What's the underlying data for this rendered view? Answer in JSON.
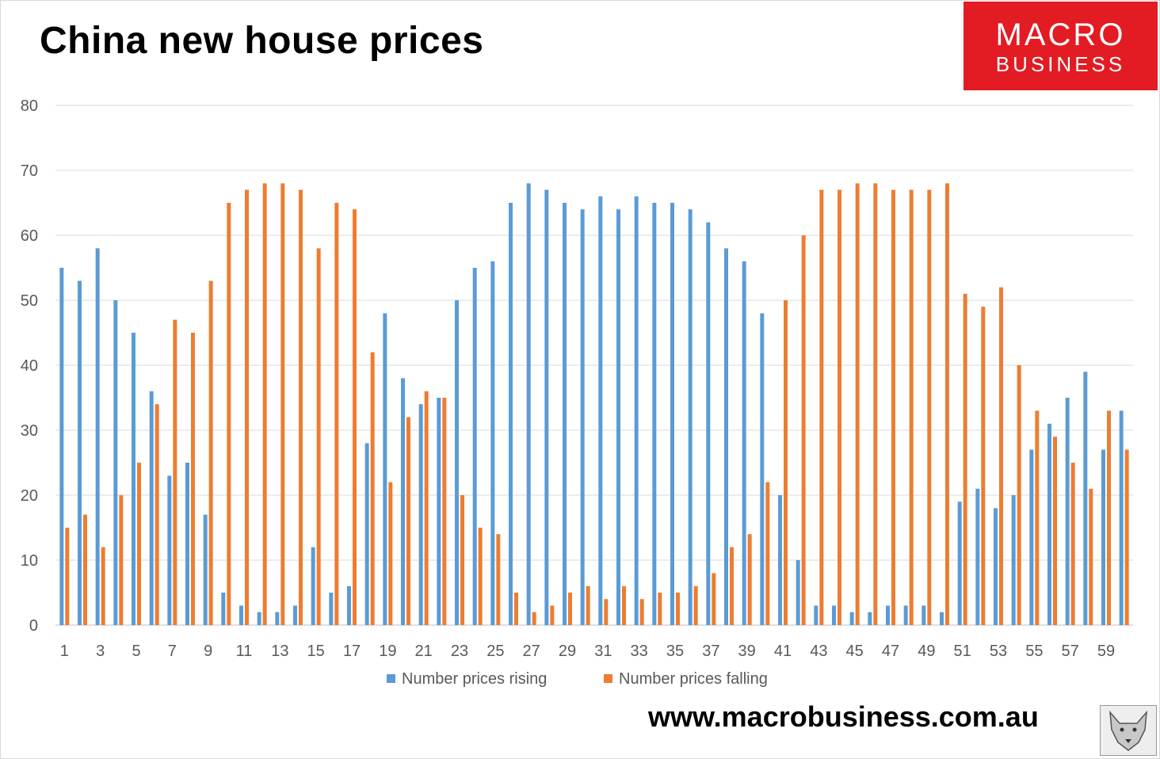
{
  "title": "China new house prices",
  "logo": {
    "line1": "MACRO",
    "line2": "BUSINESS",
    "color": "#e31b23"
  },
  "website": "www.macrobusiness.com.au",
  "chart_data": {
    "type": "bar",
    "title": "China new house prices",
    "xlabel": "",
    "ylabel": "",
    "ylim": [
      0,
      80
    ],
    "yticks": [
      0,
      10,
      20,
      30,
      40,
      50,
      60,
      70,
      80
    ],
    "grid": true,
    "legend": "bottom",
    "x_tick_labels": [
      "1",
      "3",
      "5",
      "7",
      "9",
      "11",
      "13",
      "15",
      "17",
      "19",
      "21",
      "23",
      "25",
      "27",
      "29",
      "31",
      "33",
      "35",
      "37",
      "39",
      "41",
      "43",
      "45",
      "47",
      "49",
      "51",
      "53",
      "55",
      "57",
      "59"
    ],
    "categories": [
      1,
      2,
      3,
      4,
      5,
      6,
      7,
      8,
      9,
      10,
      11,
      12,
      13,
      14,
      15,
      16,
      17,
      18,
      19,
      20,
      21,
      22,
      23,
      24,
      25,
      26,
      27,
      28,
      29,
      30,
      31,
      32,
      33,
      34,
      35,
      36,
      37,
      38,
      39,
      40,
      41,
      42,
      43,
      44,
      45,
      46,
      47,
      48,
      49,
      50,
      51,
      52,
      53,
      54,
      55,
      56,
      57,
      58,
      59,
      60
    ],
    "series": [
      {
        "name": "Number prices rising",
        "color": "#5b9bd5",
        "values": [
          55,
          53,
          58,
          50,
          45,
          36,
          23,
          25,
          17,
          5,
          3,
          2,
          2,
          3,
          12,
          5,
          6,
          28,
          48,
          38,
          34,
          35,
          50,
          55,
          56,
          65,
          68,
          67,
          65,
          64,
          66,
          64,
          66,
          65,
          65,
          64,
          62,
          58,
          56,
          48,
          20,
          10,
          3,
          3,
          2,
          2,
          3,
          3,
          3,
          2,
          19,
          21,
          18,
          20,
          27,
          31,
          35,
          39,
          27,
          33
        ]
      },
      {
        "name": "Number prices falling",
        "color": "#ed7d31",
        "values": [
          15,
          17,
          12,
          20,
          25,
          34,
          47,
          45,
          53,
          65,
          67,
          68,
          68,
          67,
          58,
          65,
          64,
          42,
          22,
          32,
          36,
          35,
          20,
          15,
          14,
          5,
          2,
          3,
          5,
          6,
          4,
          6,
          4,
          5,
          5,
          6,
          8,
          12,
          14,
          22,
          50,
          60,
          67,
          67,
          68,
          68,
          67,
          67,
          67,
          68,
          51,
          49,
          52,
          40,
          33,
          29,
          25,
          21,
          33,
          27
        ]
      }
    ]
  }
}
